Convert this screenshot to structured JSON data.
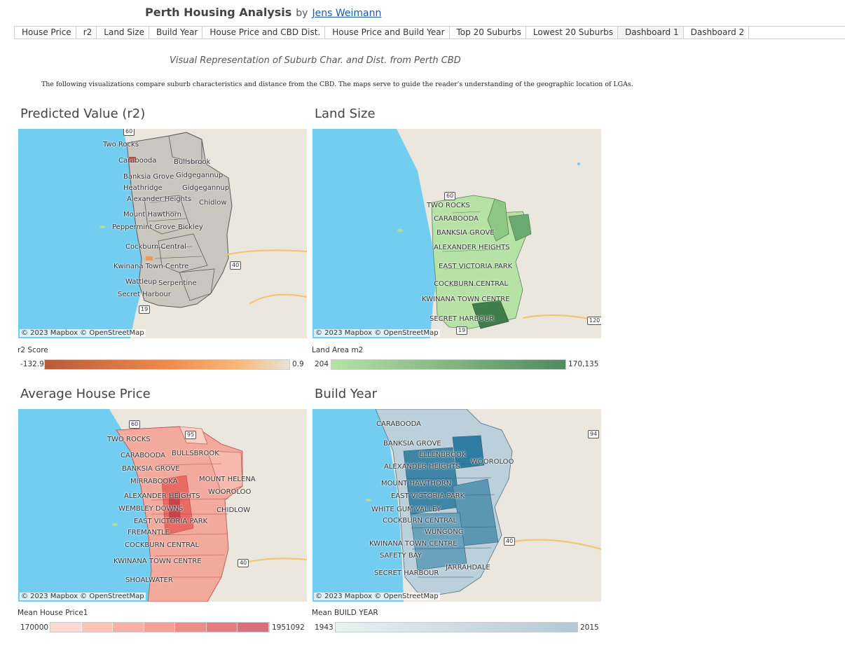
{
  "header": {
    "title": "Perth Housing Analysis",
    "by": "by",
    "author": "Jens Weimann"
  },
  "tabs": [
    {
      "label": "House Price"
    },
    {
      "label": "r2"
    },
    {
      "label": "Land Size"
    },
    {
      "label": "Build Year"
    },
    {
      "label": "House Price and CBD Dist."
    },
    {
      "label": "House Price and Build Year"
    },
    {
      "label": "Top 20 Suburbs"
    },
    {
      "label": "Lowest 20 Suburbs"
    },
    {
      "label": "Dashboard 1"
    },
    {
      "label": "Dashboard 2"
    }
  ],
  "active_tab": "Dashboard 1",
  "subtitle": "Visual Representation of Suburb Char. and Dist. from Perth CBD",
  "description": "The following visualizations compare suburb characteristics and distance from the CBD. The maps serve to guide the reader's understanding of the geographic location of LGAs.",
  "attribution": "© 2023 Mapbox  © OpenStreetMap",
  "panels": {
    "r2": {
      "title": "Predicted Value (r2)",
      "labels": [
        "Two Rocks",
        "Carabooda",
        "Bullsbrook",
        "Banksia Grove",
        "Gidgegannup",
        "Heathridge",
        "Gidgegannup",
        "Alexander Heights",
        "Chidlow",
        "Mount Hawthorn",
        "Peppermint Grove",
        "Bickley",
        "Cockburn Central",
        "Kwinana Town Centre",
        "Wattleup",
        "Serpentine",
        "Secret Harbour"
      ],
      "shields": [
        "60",
        "40",
        "19"
      ],
      "legend": {
        "title": "r2 Score",
        "min": "-132.9",
        "max": "0.9"
      },
      "fill": "#c9c6c0"
    },
    "land": {
      "title": "Land Size",
      "labels": [
        "TWO ROCKS",
        "CARABOODA",
        "BANKSIA GROVE",
        "ALEXANDER HEIGHTS",
        "EAST VICTORIA PARK",
        "COCKBURN CENTRAL",
        "KWINANA TOWN CENTRE",
        "SECRET HARBOUR"
      ],
      "shields": [
        "60",
        "19",
        "120"
      ],
      "legend": {
        "title": "Land Area m2",
        "min": "204",
        "max": "170,135"
      },
      "fill": "#a8d89a"
    },
    "price": {
      "title": "Average House Price",
      "labels": [
        "TWO ROCKS",
        "CARABOODA",
        "BULLSBROOK",
        "BANKSIA GROVE",
        "MIRRABOOKA",
        "MOUNT HELENA",
        "ALEXANDER HEIGHTS",
        "WOOROLOO",
        "WEMBLEY DOWNS",
        "CHIDLOW",
        "EAST VICTORIA PARK",
        "FREMANTLE",
        "COCKBURN CENTRAL",
        "KWINANA TOWN CENTRE",
        "SHOALWATER"
      ],
      "shields": [
        "60",
        "95",
        "40"
      ],
      "legend": {
        "title": "Mean House Price1",
        "min": "170000",
        "max": "1951092"
      },
      "fill": "#f1a195"
    },
    "build": {
      "title": "Build Year",
      "labels": [
        "CARABOODA",
        "BANKSIA GROVE",
        "ELLENBROOK",
        "ALEXANDER HEIGHTS",
        "WOOROLOO",
        "MOUNT HAWTHORN",
        "EAST VICTORIA PARK",
        "WHITE GUM VALLEY",
        "COCKBURN CENTRAL",
        "WUNGONG",
        "KWINANA TOWN CENTRE",
        "SAFETY BAY",
        "JARRAHDALE",
        "SECRET HARBOUR"
      ],
      "shields": [
        "94",
        "40"
      ],
      "legend": {
        "title": "Mean BUILD YEAR",
        "min": "1943",
        "max": "2015"
      },
      "fill": "#8fb4c6"
    }
  },
  "colors": {
    "ocean": "#73cdf0",
    "land": "#ece7de",
    "r2_gradient": [
      "#b85a3c",
      "#ef8a4a",
      "#fbb97c",
      "#e8e2d8"
    ],
    "land_gradient": [
      "#b6e3a5",
      "#4f8a5d"
    ],
    "price_steps": [
      "#fcd9d3",
      "#fbc4ba",
      "#f8b1a6",
      "#f59e94",
      "#ee8d88",
      "#e57e82",
      "#d6707c"
    ],
    "build_gradient": [
      "#e5f3f0",
      "#b5c7d6"
    ]
  }
}
